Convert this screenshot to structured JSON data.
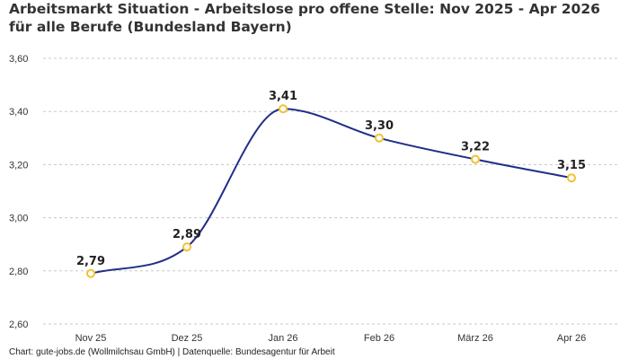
{
  "chart_data": {
    "type": "line",
    "title": "Arbeitsmarkt Situation - Arbeitslose pro offene Stelle: Nov 2025 - Apr 2026 für alle Berufe (Bundesland Bayern)",
    "xlabel": "",
    "ylabel": "",
    "categories": [
      "Nov 25",
      "Dez 25",
      "Jan 26",
      "Feb 26",
      "März 26",
      "Apr 26"
    ],
    "values": [
      2.79,
      2.89,
      3.41,
      3.3,
      3.22,
      3.15
    ],
    "data_labels": [
      "2,79",
      "2,89",
      "3,41",
      "3,30",
      "3,22",
      "3,15"
    ],
    "ylim": [
      2.6,
      3.6
    ],
    "yticks": [
      2.6,
      2.8,
      3.0,
      3.2,
      3.4,
      3.6
    ],
    "ytick_labels": [
      "2,60",
      "2,80",
      "3,00",
      "3,20",
      "3,40",
      "3,60"
    ],
    "grid": true,
    "line_color": "#1f2f86",
    "marker_color": "#f2c230"
  },
  "footer": {
    "source": "Chart: gute-jobs.de (Wollmilchsau GmbH) | Datenquelle: Bundesagentur für Arbeit"
  }
}
